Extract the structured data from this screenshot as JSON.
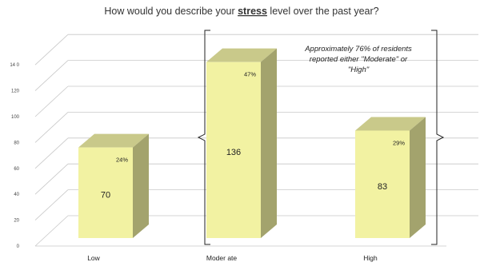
{
  "chart_data": {
    "type": "bar",
    "title_before": "How would you describe your ",
    "title_emphasis": "stress",
    "title_after": " level over the past year?",
    "categories": [
      "Low",
      "Moder ate",
      "High"
    ],
    "values": [
      70,
      136,
      83
    ],
    "percent_labels": [
      "24%",
      "47%",
      "29%"
    ],
    "y_ticks": [
      "0",
      "20",
      "40",
      "60",
      "80",
      "100",
      "120",
      "14 0"
    ],
    "ylim": [
      0,
      140
    ],
    "grid": true,
    "bar_style": "3d",
    "colors": {
      "bar_front": "#f2f2a2",
      "bar_top": "#c9c98a",
      "bar_side": "#a3a36d",
      "gridline": "#c8c8c8",
      "bracket": "#222222"
    },
    "annotation": {
      "lines": [
        "Approximately 76% of residents",
        "reported either \"Moderate\" or",
        "\"High\""
      ]
    }
  }
}
